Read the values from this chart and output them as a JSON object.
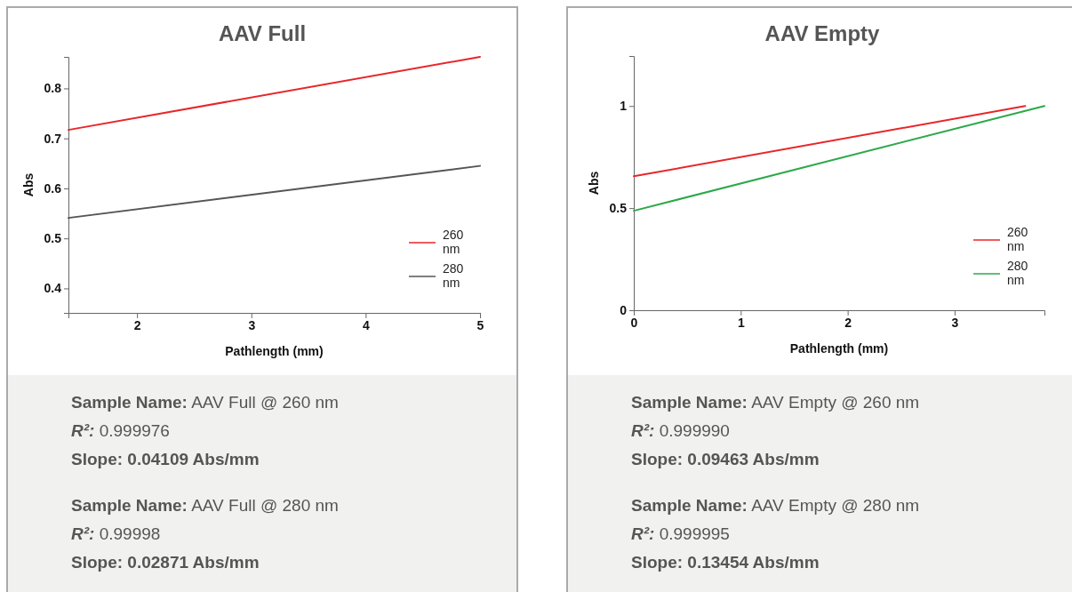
{
  "chart_data": [
    {
      "type": "line",
      "title": "AAV Full",
      "xlabel": "Pathlength (mm)",
      "ylabel": "Abs",
      "xlim": [
        1.4,
        5
      ],
      "xticks": [
        2,
        3,
        4,
        5
      ],
      "ylim": [
        0.351,
        0.863
      ],
      "yticks": [
        0.4,
        0.5,
        0.6,
        0.7,
        0.8
      ],
      "grid": false,
      "legend": "bottom right",
      "marker": "none",
      "line_style": "solid",
      "series": [
        {
          "name": "260 nm",
          "color": "#e8262a",
          "x": [
            1.4,
            5
          ],
          "values": [
            0.717,
            0.863
          ]
        },
        {
          "name": "280 nm",
          "color": "#555555",
          "x": [
            1.4,
            5
          ],
          "values": [
            0.541,
            0.645
          ]
        }
      ],
      "annotations": [
        "Sample Name: AAV Full @ 260 nm",
        "R²: 0.999976",
        "Slope: 0.04109 Abs/mm",
        "Sample Name: AAV Full @ 280 nm",
        "R²: 0.99998",
        "Slope: 0.02871 Abs/mm"
      ]
    },
    {
      "type": "line",
      "title": "AAV Empty",
      "xlabel": "Pathlength (mm)",
      "ylabel": "Abs",
      "xlim": [
        0,
        3.84
      ],
      "xticks": [
        0,
        1,
        2,
        3
      ],
      "ylim": [
        0,
        1.245
      ],
      "yticks": [
        0,
        0.5,
        1
      ],
      "grid": false,
      "legend": "bottom right",
      "marker": "none",
      "line_style": "solid",
      "series": [
        {
          "name": "260 nm",
          "color": "#e8262a",
          "x": [
            0,
            3.66
          ],
          "values": [
            0.656,
            1
          ]
        },
        {
          "name": "280 nm",
          "color": "#2ca84a",
          "x": [
            0,
            3.84
          ],
          "values": [
            0.487,
            1
          ]
        }
      ],
      "annotations": [
        "Sample Name: AAV Empty @ 260 nm",
        "R²: 0.999990",
        "Slope: 0.09463 Abs/mm",
        "Sample Name: AAV Empty @ 280 nm",
        "R²: 0.999995",
        "Slope: 0.13454 Abs/mm"
      ]
    }
  ]
}
